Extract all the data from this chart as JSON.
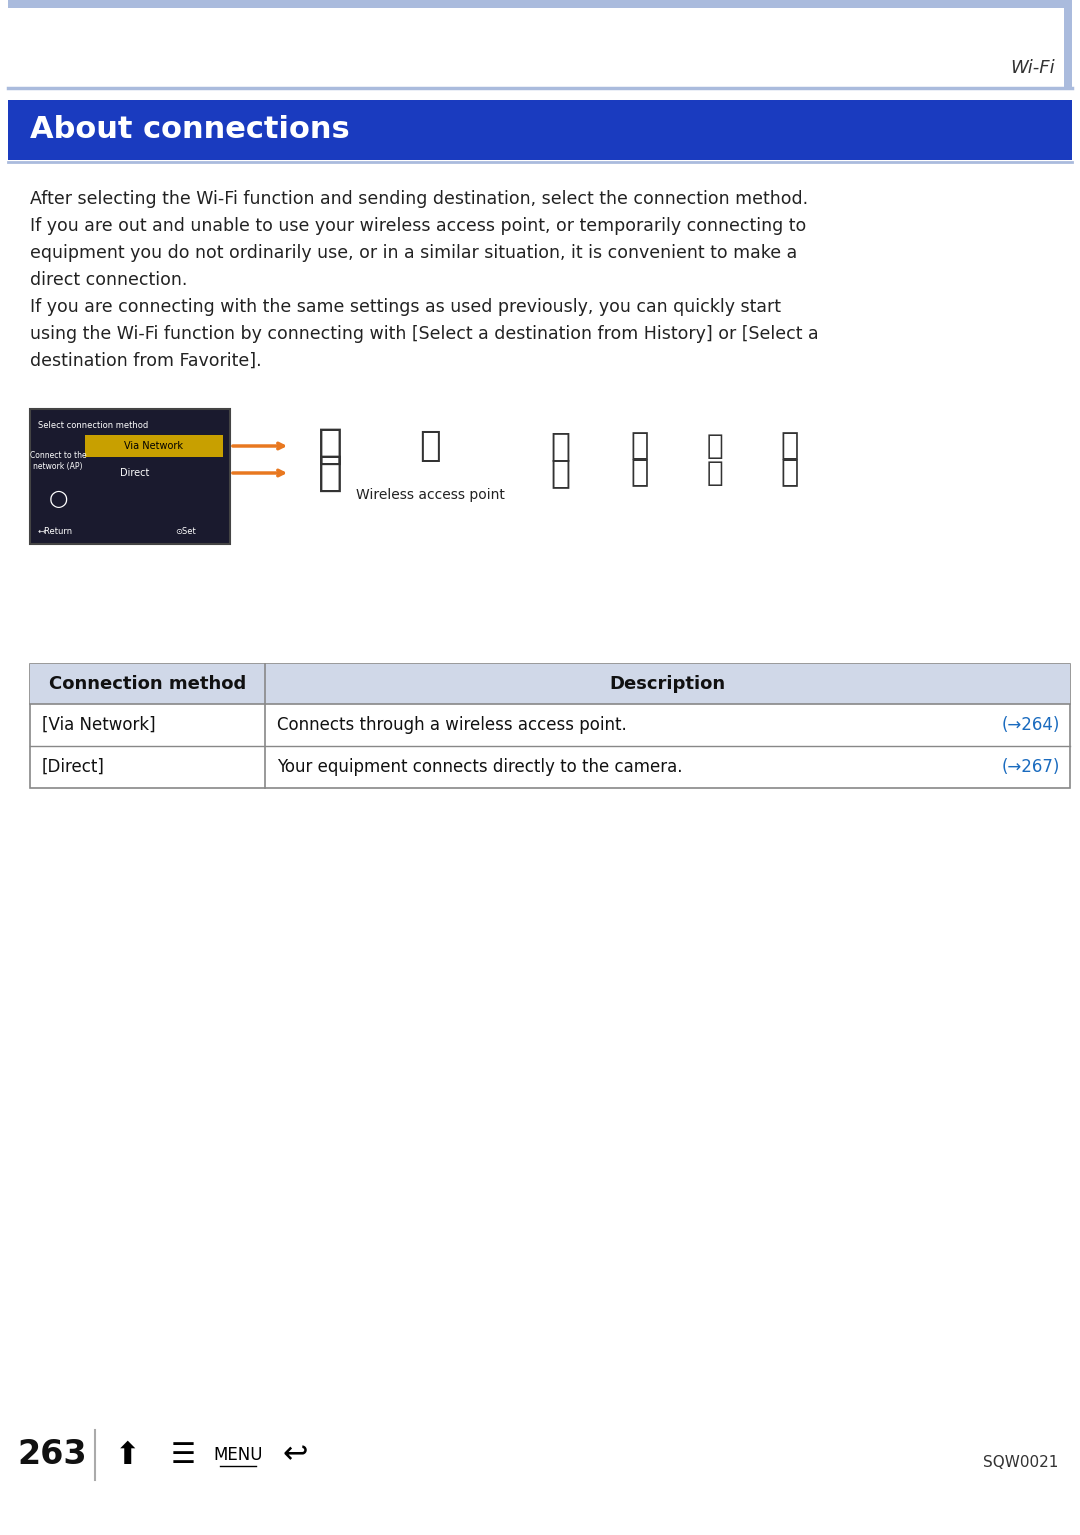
{
  "page_number": "263",
  "model_code": "SQW0021",
  "wifi_label": "Wi-Fi",
  "section_title": "About connections",
  "section_title_bg": "#1a3bbf",
  "section_title_color": "#ffffff",
  "body_text": "After selecting the Wi-Fi function and sending destination, select the connection method.\nIf you are out and unable to use your wireless access point, or temporarily connecting to\nequipment you do not ordinarily use, or in a similar situation, it is convenient to make a\ndirect connection.\nIf you are connecting with the same settings as used previously, you can quickly start\nusing the Wi-Fi function by connecting with [Select a destination from History] or [Select a\ndestination from Favorite].",
  "body_text_color": "#222222",
  "table_header_bg": "#d0d8e8",
  "table_border_color": "#888888",
  "table_headers": [
    "Connection method",
    "Description"
  ],
  "table_rows": [
    [
      "[Via Network]",
      "Connects through a wireless access point.",
      "→264"
    ],
    [
      "[Direct]",
      "Your equipment connects directly to the camera.",
      "→267"
    ]
  ],
  "link_color": "#1a6bbf",
  "border_color": "#aabbdd",
  "orange_arrow_color": "#e87820",
  "wireless_label": "Wireless access point",
  "page_bg": "#ffffff"
}
